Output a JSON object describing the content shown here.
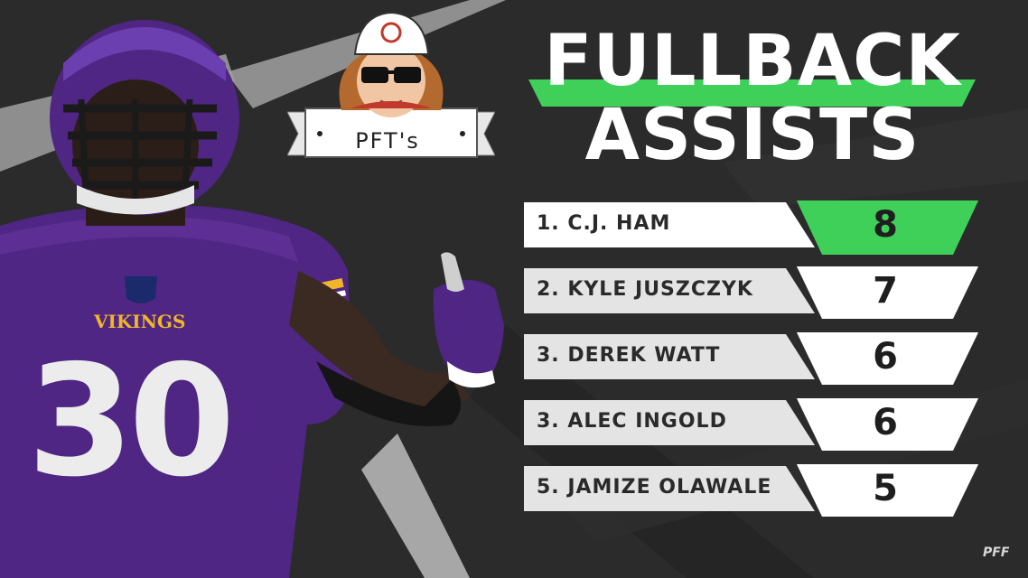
{
  "title": {
    "line1": "FULLBACK",
    "line2": "ASSISTS"
  },
  "badge": {
    "label": "PFT's",
    "icon": "cartoon-avatar-icon"
  },
  "player_art": {
    "team_text": "VIKINGS",
    "number": "30",
    "number_right": "30"
  },
  "chart_data": {
    "type": "table",
    "title": "FULLBACK ASSISTS",
    "rows": [
      {
        "label": "1. C.J. HAM",
        "value": 8
      },
      {
        "label": "2. KYLE JUSZCZYK",
        "value": 7
      },
      {
        "label": "3. DEREK WATT",
        "value": 6
      },
      {
        "label": "3. ALEC INGOLD",
        "value": 6
      },
      {
        "label": "5. JAMIZE OLAWALE",
        "value": 5
      }
    ]
  },
  "watermark": "PFF",
  "colors": {
    "accent_green": "#3fd05a",
    "background": "#2a2a2a",
    "purple": "#4f2683",
    "gold": "#f0b52a"
  }
}
